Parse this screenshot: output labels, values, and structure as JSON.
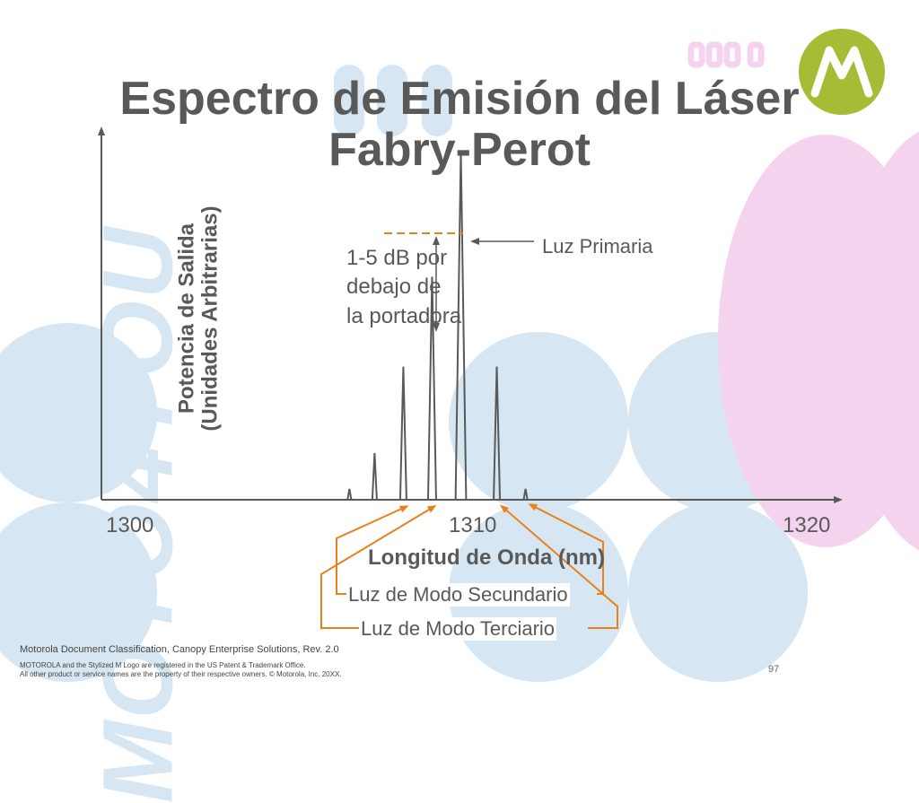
{
  "title": {
    "line1": "Espectro de Emisión del Láser",
    "line2": "Fabry-Perot"
  },
  "watermark": "MOTO4YOU",
  "chart_data": {
    "type": "line",
    "xlabel": "Longitud de Onda (nm)",
    "ylabel_line1": "Potencia de Salida",
    "ylabel_line2": "(Unidades Arbitrarias)",
    "xlim": [
      1300,
      1320
    ],
    "x_tick_labels": [
      "1300",
      "1310",
      "1320"
    ],
    "ylim": [
      0,
      1
    ],
    "series": [
      {
        "x": [
          1306.9,
          1307.6,
          1308.4,
          1309.2,
          1310.0,
          1311.0,
          1311.8
        ],
        "y": [
          0.03,
          0.13,
          0.37,
          0.62,
          0.97,
          0.37,
          0.03
        ]
      }
    ],
    "annotations": {
      "primary": "Luz Primaria",
      "below_carrier": "1-5 dB por debajo de la portadora",
      "secondary": "Luz de Modo Secundario",
      "tertiary": "Luz de Modo Terciario"
    }
  },
  "footer": {
    "classification": "Motorola Document Classification, Canopy Enterprise Solutions, Rev. 2.0",
    "trademark_line1": "MOTOROLA and the Stylized M Logo are registered in the US Patent & Trademark Office.",
    "trademark_line2": "All other product or service names are the property of their respective owners. © Motorola, Inc. 20XX.",
    "page_number": "97"
  },
  "colors": {
    "title": "#595959",
    "axis": "#595959",
    "callout_orange": "#e8811c",
    "decor_blue": "#d6e7f3",
    "decor_pink": "#f4d3ee",
    "logo_green": "#a5bd35"
  }
}
